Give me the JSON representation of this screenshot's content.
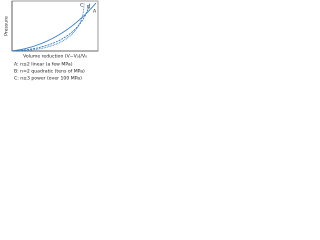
{
  "axes": {
    "y_label": "Pressure",
    "x_label": "Volume reduction (V−V₀)/V₀"
  },
  "curves": [
    {
      "label": "A"
    },
    {
      "label": "B"
    },
    {
      "label": "C"
    }
  ],
  "legend": [
    "A: n≤2 linear (a few MPa)",
    "B: n≈2 quadratic (tens of MPa)",
    "C: n≥3 power (over 100 MPa)"
  ]
}
